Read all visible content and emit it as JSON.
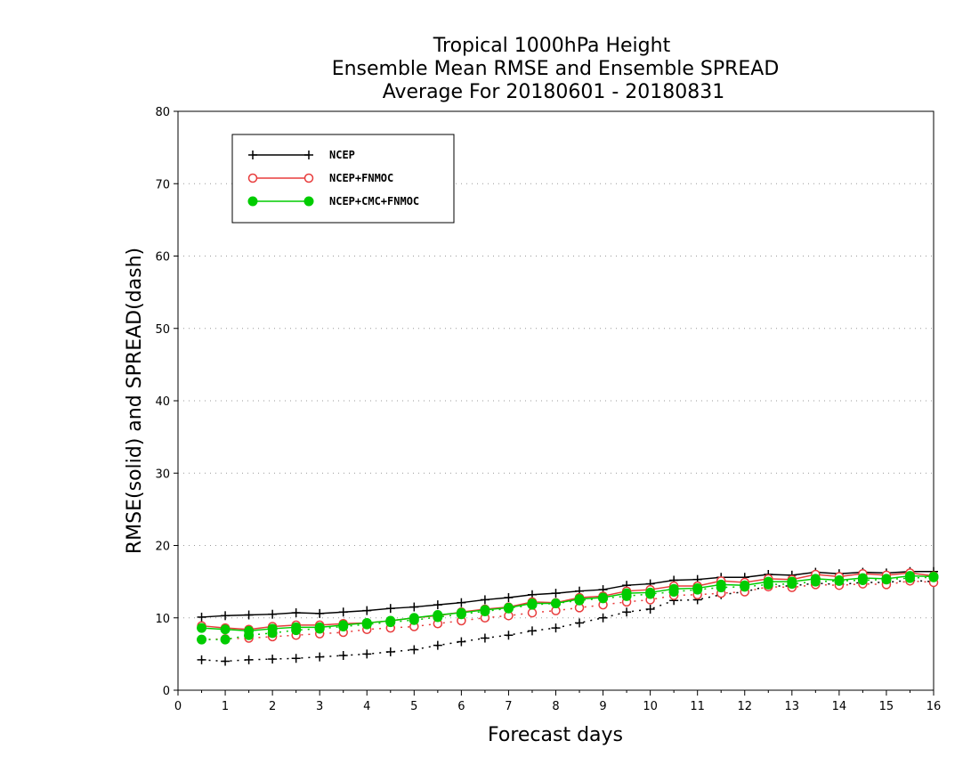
{
  "chart_data": {
    "type": "line",
    "title_lines": [
      "Tropical 1000hPa Height",
      "Ensemble Mean RMSE and Ensemble SPREAD",
      "Average For 20180601 - 20180831"
    ],
    "xlabel": "Forecast days",
    "ylabel": "RMSE(solid) and SPREAD(dash)",
    "xlim": [
      0,
      16
    ],
    "ylim": [
      0,
      80
    ],
    "xticks": [
      "0",
      "1",
      "2",
      "3",
      "4",
      "5",
      "6",
      "7",
      "8",
      "9",
      "10",
      "11",
      "12",
      "13",
      "14",
      "15",
      "16"
    ],
    "yticks": [
      "0",
      "10",
      "20",
      "30",
      "40",
      "50",
      "60",
      "70",
      "80"
    ],
    "grid": "horizontal dotted",
    "legend_position": "top-left",
    "x": [
      0.5,
      1,
      1.5,
      2,
      2.5,
      3,
      3.5,
      4,
      4.5,
      5,
      5.5,
      6,
      6.5,
      7,
      7.5,
      8,
      8.5,
      9,
      9.5,
      10,
      10.5,
      11,
      11.5,
      12,
      12.5,
      13,
      13.5,
      14,
      14.5,
      15,
      15.5,
      16
    ],
    "series": [
      {
        "name": "NCEP",
        "color": "#000000",
        "marker": "plus",
        "rmse": [
          10.1,
          10.3,
          10.4,
          10.5,
          10.7,
          10.6,
          10.8,
          11.0,
          11.3,
          11.5,
          11.8,
          12.1,
          12.5,
          12.8,
          13.2,
          13.4,
          13.7,
          13.9,
          14.5,
          14.7,
          15.2,
          15.3,
          15.6,
          15.6,
          16.0,
          15.9,
          16.3,
          16.1,
          16.3,
          16.2,
          16.4,
          16.4
        ],
        "spread": [
          4.2,
          4.0,
          4.2,
          4.3,
          4.4,
          4.6,
          4.8,
          5.0,
          5.3,
          5.6,
          6.2,
          6.7,
          7.2,
          7.6,
          8.2,
          8.6,
          9.3,
          10.0,
          10.8,
          11.2,
          12.4,
          12.5,
          13.2,
          13.6,
          14.4,
          14.4,
          14.8,
          14.6,
          14.9,
          14.9,
          15.2,
          15.0
        ]
      },
      {
        "name": "NCEP+FNMOC",
        "color": "#e83c3c",
        "marker": "open-circle",
        "rmse": [
          8.9,
          8.6,
          8.4,
          8.8,
          9.0,
          9.0,
          9.2,
          9.3,
          9.6,
          10.0,
          10.3,
          10.8,
          11.2,
          11.5,
          12.2,
          12.1,
          12.8,
          13.0,
          13.7,
          13.9,
          14.4,
          14.4,
          15.1,
          14.9,
          15.4,
          15.3,
          16.0,
          15.7,
          16.1,
          15.9,
          16.2,
          15.8
        ],
        "spread": [
          7.0,
          7.1,
          7.2,
          7.4,
          7.6,
          7.8,
          8.0,
          8.4,
          8.6,
          8.8,
          9.2,
          9.6,
          10.0,
          10.3,
          10.7,
          11.0,
          11.4,
          11.8,
          12.2,
          12.5,
          13.1,
          13.2,
          13.4,
          13.6,
          14.3,
          14.2,
          14.6,
          14.5,
          14.7,
          14.6,
          15.1,
          14.9
        ]
      },
      {
        "name": "NCEP+CMC+FNMOC",
        "color": "#00cc00",
        "marker": "filled-circle",
        "rmse": [
          8.6,
          8.4,
          8.2,
          8.5,
          8.7,
          8.7,
          9.0,
          9.3,
          9.6,
          10.0,
          10.4,
          10.7,
          11.1,
          11.4,
          12.0,
          12.0,
          12.6,
          12.8,
          13.4,
          13.5,
          14.0,
          14.1,
          14.6,
          14.5,
          15.0,
          15.0,
          15.4,
          15.2,
          15.5,
          15.4,
          15.8,
          15.7
        ],
        "spread": [
          7.0,
          7.0,
          7.6,
          7.9,
          8.3,
          8.5,
          8.8,
          9.1,
          9.4,
          9.7,
          10.1,
          10.5,
          10.9,
          11.3,
          11.8,
          12.0,
          12.4,
          12.7,
          13.0,
          13.3,
          13.6,
          13.9,
          14.2,
          14.3,
          14.6,
          14.7,
          15.0,
          15.1,
          15.2,
          15.3,
          15.5,
          15.6
        ]
      }
    ]
  }
}
